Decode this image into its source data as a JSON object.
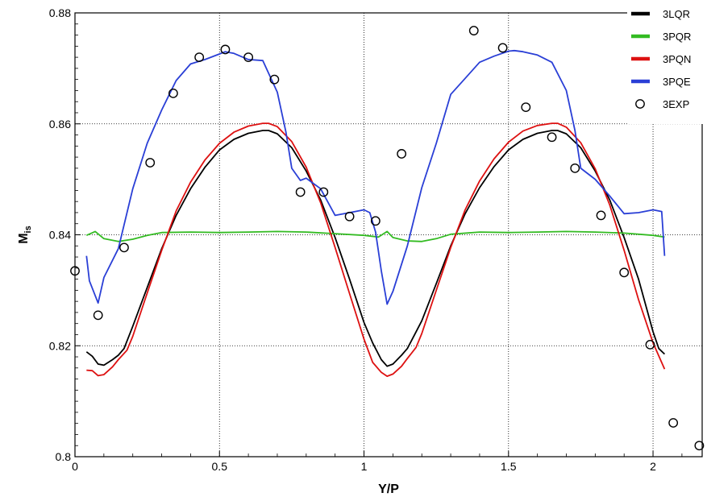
{
  "chart_data": {
    "type": "line",
    "xlabel": "Y/P",
    "ylabel": "M",
    "ylabel_sub": "is",
    "xlim": [
      0,
      2.17
    ],
    "ylim": [
      0.8,
      0.88
    ],
    "xticks": [
      0,
      0.5,
      1,
      1.5,
      2
    ],
    "xtick_labels": [
      "0",
      "0.5",
      "1",
      "1.5",
      "2"
    ],
    "yticks": [
      0.8,
      0.82,
      0.84,
      0.86,
      0.88
    ],
    "ytick_labels": [
      "0.8",
      "0.82",
      "0.84",
      "0.86",
      "0.88"
    ],
    "grid": "dotted",
    "legend_position": "top-right",
    "series": [
      {
        "name": "3LQR",
        "color": "#000000",
        "kind": "line",
        "x": [
          0.04,
          0.06,
          0.08,
          0.1,
          0.13,
          0.15,
          0.17,
          0.2,
          0.25,
          0.3,
          0.35,
          0.4,
          0.45,
          0.5,
          0.55,
          0.6,
          0.65,
          0.67,
          0.7,
          0.75,
          0.8,
          0.85,
          0.9,
          0.95,
          1.0,
          1.03,
          1.06,
          1.08,
          1.1,
          1.13,
          1.15,
          1.17,
          1.2,
          1.25,
          1.3,
          1.35,
          1.4,
          1.45,
          1.5,
          1.55,
          1.6,
          1.65,
          1.67,
          1.7,
          1.75,
          1.8,
          1.85,
          1.9,
          1.95,
          2.0,
          2.02,
          2.04
        ],
        "y": [
          0.8189,
          0.8181,
          0.8167,
          0.8165,
          0.8175,
          0.8183,
          0.8195,
          0.8235,
          0.8305,
          0.8375,
          0.8435,
          0.8483,
          0.8522,
          0.8553,
          0.8572,
          0.8583,
          0.8588,
          0.8588,
          0.8582,
          0.8557,
          0.8515,
          0.8463,
          0.8395,
          0.832,
          0.8242,
          0.8205,
          0.8175,
          0.8163,
          0.8167,
          0.8183,
          0.8195,
          0.8215,
          0.8245,
          0.8312,
          0.838,
          0.8438,
          0.8485,
          0.8523,
          0.8553,
          0.8572,
          0.8583,
          0.8588,
          0.8588,
          0.8582,
          0.8557,
          0.8515,
          0.8463,
          0.8395,
          0.832,
          0.8225,
          0.8195,
          0.8185
        ]
      },
      {
        "name": "3PQR",
        "color": "#33bb22",
        "kind": "line",
        "x": [
          0.04,
          0.07,
          0.1,
          0.15,
          0.2,
          0.25,
          0.3,
          0.4,
          0.5,
          0.6,
          0.7,
          0.8,
          0.9,
          1.0,
          1.05,
          1.08,
          1.1,
          1.15,
          1.2,
          1.25,
          1.3,
          1.4,
          1.5,
          1.6,
          1.7,
          1.8,
          1.9,
          2.0,
          2.04
        ],
        "y": [
          0.8399,
          0.8406,
          0.8393,
          0.8388,
          0.8392,
          0.8399,
          0.8404,
          0.8405,
          0.8404,
          0.8405,
          0.8406,
          0.8405,
          0.8402,
          0.8399,
          0.8396,
          0.8406,
          0.8395,
          0.8389,
          0.8388,
          0.8393,
          0.8401,
          0.8405,
          0.8404,
          0.8405,
          0.8406,
          0.8405,
          0.8403,
          0.8399,
          0.8396
        ]
      },
      {
        "name": "3PQN",
        "color": "#dd1111",
        "kind": "line",
        "x": [
          0.04,
          0.06,
          0.08,
          0.1,
          0.13,
          0.15,
          0.18,
          0.2,
          0.25,
          0.3,
          0.35,
          0.4,
          0.45,
          0.5,
          0.55,
          0.6,
          0.65,
          0.67,
          0.7,
          0.75,
          0.8,
          0.85,
          0.9,
          0.95,
          1.0,
          1.03,
          1.06,
          1.08,
          1.1,
          1.13,
          1.15,
          1.18,
          1.2,
          1.25,
          1.3,
          1.35,
          1.4,
          1.45,
          1.5,
          1.55,
          1.6,
          1.65,
          1.67,
          1.7,
          1.75,
          1.8,
          1.85,
          1.9,
          1.95,
          2.0,
          2.04
        ],
        "y": [
          0.8156,
          0.8155,
          0.8146,
          0.8148,
          0.8162,
          0.8175,
          0.8192,
          0.8217,
          0.8295,
          0.8372,
          0.8443,
          0.8495,
          0.8535,
          0.8565,
          0.8585,
          0.8596,
          0.8601,
          0.8601,
          0.8595,
          0.8568,
          0.8522,
          0.8458,
          0.8377,
          0.8294,
          0.8212,
          0.817,
          0.8152,
          0.8145,
          0.8149,
          0.8163,
          0.8177,
          0.8197,
          0.8222,
          0.83,
          0.8377,
          0.8445,
          0.8497,
          0.8537,
          0.8567,
          0.8587,
          0.8597,
          0.8601,
          0.8601,
          0.8594,
          0.8566,
          0.8519,
          0.8454,
          0.8372,
          0.8283,
          0.8205,
          0.8158
        ]
      },
      {
        "name": "3PQE",
        "color": "#2a3fd6",
        "kind": "line",
        "x": [
          0.04,
          0.05,
          0.08,
          0.1,
          0.15,
          0.2,
          0.25,
          0.3,
          0.35,
          0.4,
          0.45,
          0.5,
          0.52,
          0.55,
          0.6,
          0.65,
          0.7,
          0.73,
          0.75,
          0.78,
          0.8,
          0.85,
          0.9,
          0.95,
          1.0,
          1.02,
          1.04,
          1.06,
          1.08,
          1.1,
          1.15,
          1.2,
          1.25,
          1.3,
          1.35,
          1.4,
          1.45,
          1.5,
          1.52,
          1.55,
          1.6,
          1.65,
          1.7,
          1.73,
          1.75,
          1.8,
          1.85,
          1.9,
          1.95,
          2.0,
          2.03,
          2.04
        ],
        "y": [
          0.8362,
          0.8317,
          0.8277,
          0.8323,
          0.8375,
          0.8483,
          0.8565,
          0.8625,
          0.8678,
          0.8708,
          0.8716,
          0.8726,
          0.873,
          0.8727,
          0.8716,
          0.8714,
          0.8657,
          0.8585,
          0.852,
          0.8498,
          0.8502,
          0.8483,
          0.8435,
          0.844,
          0.8445,
          0.844,
          0.8405,
          0.8335,
          0.8275,
          0.8298,
          0.838,
          0.8485,
          0.8565,
          0.8653,
          0.8682,
          0.8711,
          0.8722,
          0.8731,
          0.8732,
          0.873,
          0.8724,
          0.8711,
          0.866,
          0.8588,
          0.852,
          0.85,
          0.847,
          0.8438,
          0.844,
          0.8445,
          0.8442,
          0.8362
        ]
      },
      {
        "name": "3EXP",
        "color": "#000000",
        "kind": "marker",
        "x": [
          0.0,
          0.08,
          0.17,
          0.26,
          0.34,
          0.43,
          0.52,
          0.6,
          0.69,
          0.78,
          0.86,
          0.95,
          1.04,
          1.13,
          1.38,
          1.48,
          1.56,
          1.65,
          1.73,
          1.82,
          1.9,
          1.99,
          2.07,
          2.16
        ],
        "y": [
          0.8335,
          0.8255,
          0.8377,
          0.853,
          0.8655,
          0.872,
          0.8734,
          0.872,
          0.868,
          0.8477,
          0.8477,
          0.8433,
          0.8425,
          0.8546,
          0.8768,
          0.8737,
          0.863,
          0.8576,
          0.852,
          0.8435,
          0.8332,
          0.8202,
          0.8061,
          0.802
        ]
      }
    ]
  }
}
